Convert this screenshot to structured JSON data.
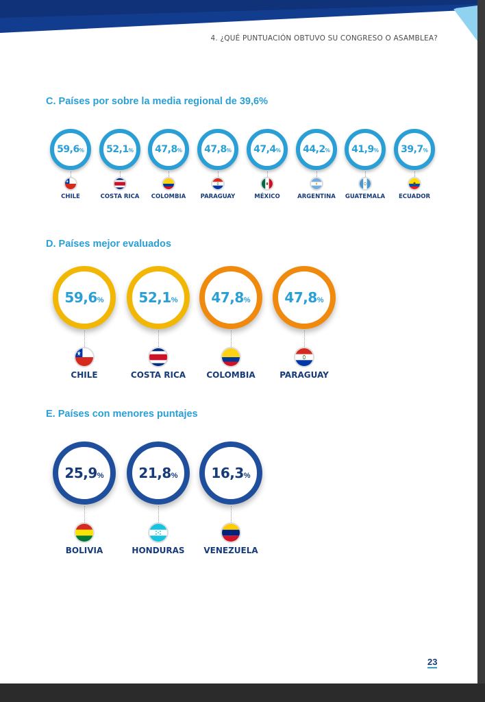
{
  "header": {
    "title": "4. ¿QUÉ PUNTUACIÓN OBTUVO SU CONGRESO O ASAMBLEA?"
  },
  "colors": {
    "blue": "#2a9fd6",
    "navy": "#173a7a",
    "yellow": "#f2b705",
    "orange": "#ef8a0e",
    "dark_blue": "#1f4f9c"
  },
  "section_c": {
    "title": "C. Países por sobre la media regional de 39,6%",
    "items": [
      {
        "value": "59,6",
        "unit": "%",
        "country": "CHILE",
        "flag": "chile-flag-icon"
      },
      {
        "value": "52,1",
        "unit": "%",
        "country": "COSTA RICA",
        "flag": "costa-rica-flag-icon"
      },
      {
        "value": "47,8",
        "unit": "%",
        "country": "COLOMBIA",
        "flag": "colombia-flag-icon"
      },
      {
        "value": "47,8",
        "unit": "%",
        "country": "PARAGUAY",
        "flag": "paraguay-flag-icon"
      },
      {
        "value": "47,4",
        "unit": "%",
        "country": "MÉXICO",
        "flag": "mexico-flag-icon"
      },
      {
        "value": "44,2",
        "unit": "%",
        "country": "ARGENTINA",
        "flag": "argentina-flag-icon"
      },
      {
        "value": "41,9",
        "unit": "%",
        "country": "GUATEMALA",
        "flag": "guatemala-flag-icon"
      },
      {
        "value": "39,7",
        "unit": "%",
        "country": "ECUADOR",
        "flag": "ecuador-flag-icon"
      }
    ]
  },
  "section_d": {
    "title": "D. Países mejor evaluados",
    "items": [
      {
        "value": "59,6",
        "unit": "%",
        "country": "CHILE",
        "flag": "chile-flag-icon"
      },
      {
        "value": "52,1",
        "unit": "%",
        "country": "COSTA RICA",
        "flag": "costa-rica-flag-icon"
      },
      {
        "value": "47,8",
        "unit": "%",
        "country": "COLOMBIA",
        "flag": "colombia-flag-icon"
      },
      {
        "value": "47,8",
        "unit": "%",
        "country": "PARAGUAY",
        "flag": "paraguay-flag-icon"
      }
    ]
  },
  "section_e": {
    "title": "E. Países con menores puntajes",
    "items": [
      {
        "value": "25,9",
        "unit": "%",
        "country": "BOLIVIA",
        "flag": "bolivia-flag-icon"
      },
      {
        "value": "21,8",
        "unit": "%",
        "country": "HONDURAS",
        "flag": "honduras-flag-icon"
      },
      {
        "value": "16,3",
        "unit": "%",
        "country": "VENEZUELA",
        "flag": "venezuela-flag-icon"
      }
    ]
  },
  "footer": {
    "page_number": "23"
  }
}
